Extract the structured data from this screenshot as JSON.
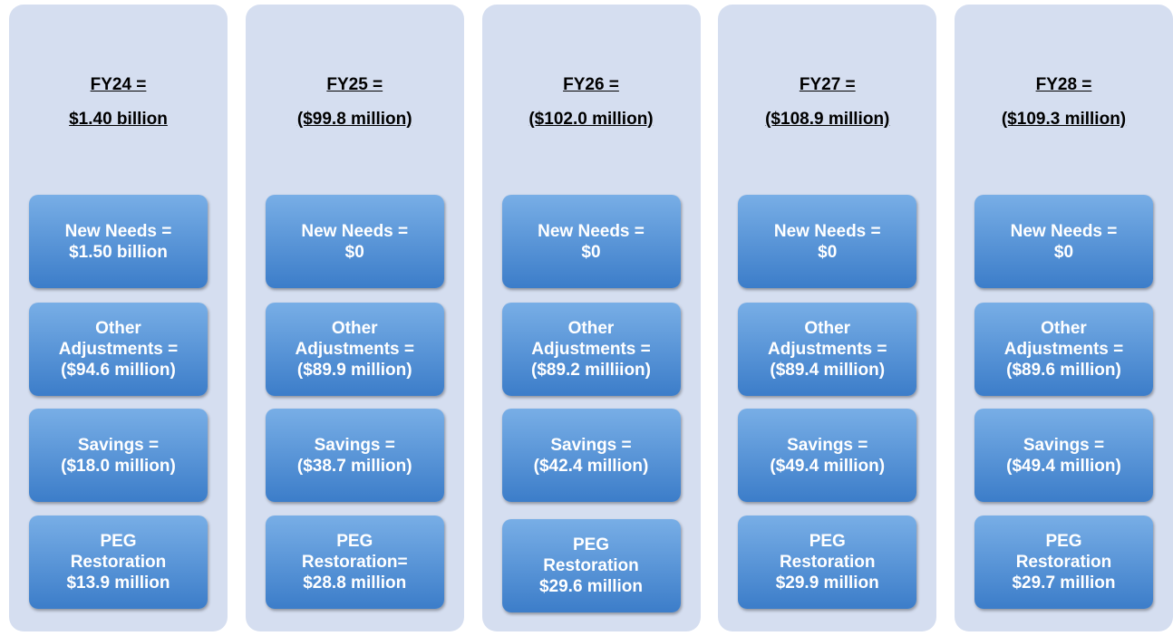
{
  "columns": [
    {
      "heading": [
        "FY24 =",
        "$1.40 billion"
      ],
      "boxes": [
        {
          "lines": [
            "New Needs =",
            "$1.50 billion"
          ]
        },
        {
          "lines": [
            "Other",
            "Adjustments =",
            "($94.6 million)"
          ]
        },
        {
          "lines": [
            "Savings =",
            "($18.0 million)"
          ]
        },
        {
          "lines": [
            "PEG",
            "Restoration",
            "$13.9 million"
          ]
        }
      ]
    },
    {
      "heading": [
        "FY25 =",
        "($99.8 million)"
      ],
      "boxes": [
        {
          "lines": [
            "New Needs =",
            "$0"
          ]
        },
        {
          "lines": [
            "Other",
            "Adjustments =",
            "($89.9 million)"
          ]
        },
        {
          "lines": [
            "Savings =",
            "($38.7 million)"
          ]
        },
        {
          "lines": [
            "PEG",
            "Restoration=",
            "$28.8 million"
          ]
        }
      ]
    },
    {
      "heading": [
        "FY26 =",
        "($102.0 million)"
      ],
      "boxes": [
        {
          "lines": [
            "New Needs =",
            "$0"
          ]
        },
        {
          "lines": [
            "Other",
            "Adjustments =",
            "($89.2 milliion)"
          ]
        },
        {
          "lines": [
            "Savings =",
            "($42.4 million)"
          ]
        },
        {
          "lines": [
            "PEG",
            "Restoration",
            "$29.6 million"
          ]
        }
      ]
    },
    {
      "heading": [
        "FY27 =",
        "($108.9 million)"
      ],
      "boxes": [
        {
          "lines": [
            "New Needs =",
            "$0"
          ]
        },
        {
          "lines": [
            "Other",
            "Adjustments =",
            "($89.4 million)"
          ]
        },
        {
          "lines": [
            "Savings =",
            "($49.4 million)"
          ]
        },
        {
          "lines": [
            "PEG",
            "Restoration",
            "$29.9 million"
          ]
        }
      ]
    },
    {
      "heading": [
        "FY28 =",
        "($109.3 million)"
      ],
      "boxes": [
        {
          "lines": [
            "New Needs =",
            "$0"
          ]
        },
        {
          "lines": [
            "Other",
            "Adjustments =",
            "($89.6 million)"
          ]
        },
        {
          "lines": [
            "Savings =",
            "($49.4 million)"
          ]
        },
        {
          "lines": [
            "PEG",
            "Restoration",
            "$29.7 million"
          ]
        }
      ]
    }
  ]
}
